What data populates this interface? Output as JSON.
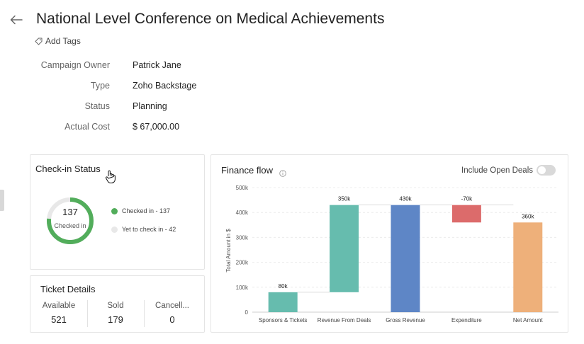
{
  "header": {
    "title": "National Level Conference on Medical Achievements",
    "add_tags_label": "Add Tags"
  },
  "details": [
    {
      "label": "Campaign Owner",
      "value": "Patrick Jane"
    },
    {
      "label": "Type",
      "value": "Zoho Backstage"
    },
    {
      "label": "Status",
      "value": "Planning"
    },
    {
      "label": "Actual Cost",
      "value": "$ 67,000.00"
    }
  ],
  "checkin": {
    "title": "Check-in Status",
    "checked_in_count": "137",
    "checked_in_label": "Checked in",
    "legend": [
      {
        "label": "Checked in - 137",
        "color": "#52ad5b"
      },
      {
        "label": "Yet to check in - 42",
        "color": "#e8e8e8"
      }
    ],
    "checked_in_fraction": 0.765
  },
  "tickets": {
    "title": "Ticket Details",
    "columns": [
      {
        "label": "Available",
        "value": "521"
      },
      {
        "label": "Sold",
        "value": "179"
      },
      {
        "label": "Cancell...",
        "value": "0"
      }
    ]
  },
  "finance": {
    "title": "Finance flow",
    "toggle_label": "Include Open Deals",
    "toggle_on": false
  },
  "chart_data": {
    "type": "bar",
    "subtype": "waterfall",
    "categories": [
      "Sponsors & Tickets",
      "Revenue From Deals",
      "Gross Revenue",
      "Expenditure",
      "Net Amount"
    ],
    "bars": [
      {
        "category": "Sponsors & Tickets",
        "start": 0,
        "end": 80,
        "label": "80k",
        "color": "#66bcae"
      },
      {
        "category": "Revenue From Deals",
        "start": 80,
        "end": 430,
        "label": "350k",
        "color": "#66bcae"
      },
      {
        "category": "Gross Revenue",
        "start": 0,
        "end": 430,
        "label": "430k",
        "color": "#5e86c6"
      },
      {
        "category": "Expenditure",
        "start": 360,
        "end": 430,
        "label": "-70k",
        "color": "#dc6b6b"
      },
      {
        "category": "Net Amount",
        "start": 0,
        "end": 360,
        "label": "360k",
        "color": "#eeb07a"
      }
    ],
    "ylabel": "Total Amount in $",
    "yticks": [
      "0",
      "100k",
      "200k",
      "300k",
      "400k",
      "500k"
    ],
    "ylim": [
      0,
      500
    ],
    "grid": true
  }
}
